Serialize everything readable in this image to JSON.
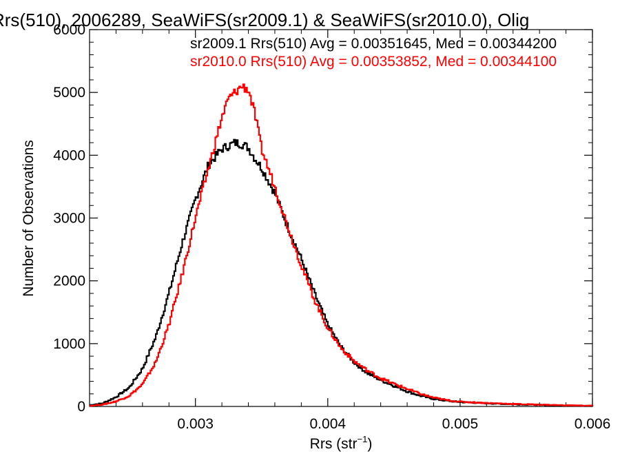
{
  "chart_data": {
    "type": "line",
    "title": "Rrs(510), 2006289, SeaWiFS(sr2009.1) & SeaWiFS(sr2010.0), Olig",
    "xlabel": "Rrs (str",
    "xlabel_superscript": "−1",
    "xlabel_suffix": ")",
    "ylabel": "Number of Observations",
    "xlim": [
      0.0022,
      0.006
    ],
    "ylim": [
      0,
      6000
    ],
    "x_ticks": [
      0.003,
      0.004,
      0.005,
      0.006
    ],
    "x_tick_labels": [
      "0.003",
      "0.004",
      "0.005",
      "0.006"
    ],
    "y_ticks": [
      0,
      1000,
      2000,
      3000,
      4000,
      5000,
      6000
    ],
    "y_tick_labels": [
      "0",
      "1000",
      "2000",
      "3000",
      "4000",
      "5000",
      "6000"
    ],
    "grid": false,
    "legend_placement": "top-right",
    "annotations": [
      {
        "text": "sr2009.1 Rrs(510) Avg = 0.00351645, Med = 0.00344200",
        "color": "#000000"
      },
      {
        "text": "sr2010.0 Rrs(510) Avg = 0.00353852, Med = 0.00344100",
        "color": "#ff0000"
      }
    ],
    "series": [
      {
        "color": "#000000",
        "x": [
          0.0022,
          0.0023,
          0.0024,
          0.0025,
          0.0026,
          0.0027,
          0.0028,
          0.0029,
          0.003,
          0.0031,
          0.0032,
          0.00325,
          0.0033,
          0.00335,
          0.0034,
          0.00345,
          0.0035,
          0.0036,
          0.0037,
          0.0038,
          0.0039,
          0.004,
          0.0041,
          0.0042,
          0.0043,
          0.0044,
          0.0045,
          0.0046,
          0.0047,
          0.0048,
          0.0049,
          0.005,
          0.0052,
          0.0054,
          0.0056,
          0.0058,
          0.006
        ],
        "y": [
          20,
          50,
          150,
          300,
          600,
          1100,
          1800,
          2600,
          3300,
          3850,
          4100,
          4150,
          4200,
          4180,
          4120,
          3950,
          3800,
          3400,
          2850,
          2350,
          1800,
          1300,
          950,
          700,
          530,
          420,
          330,
          240,
          170,
          120,
          90,
          70,
          50,
          35,
          25,
          15,
          10
        ]
      },
      {
        "color": "#ff0000",
        "x": [
          0.0022,
          0.0023,
          0.0024,
          0.0025,
          0.0026,
          0.0027,
          0.0028,
          0.0029,
          0.003,
          0.0031,
          0.0032,
          0.00325,
          0.0033,
          0.00335,
          0.0034,
          0.00345,
          0.0035,
          0.0036,
          0.0037,
          0.0038,
          0.0039,
          0.004,
          0.0041,
          0.0042,
          0.0043,
          0.0044,
          0.0045,
          0.0046,
          0.0047,
          0.0048,
          0.0049,
          0.005,
          0.0052,
          0.0054,
          0.0056,
          0.0058,
          0.006
        ],
        "y": [
          10,
          30,
          80,
          170,
          350,
          700,
          1300,
          2100,
          3000,
          3800,
          4600,
          4900,
          5000,
          5100,
          5050,
          4650,
          4100,
          3500,
          2850,
          2250,
          1700,
          1250,
          930,
          720,
          570,
          450,
          360,
          280,
          200,
          140,
          100,
          75,
          55,
          40,
          28,
          18,
          12
        ]
      }
    ]
  }
}
